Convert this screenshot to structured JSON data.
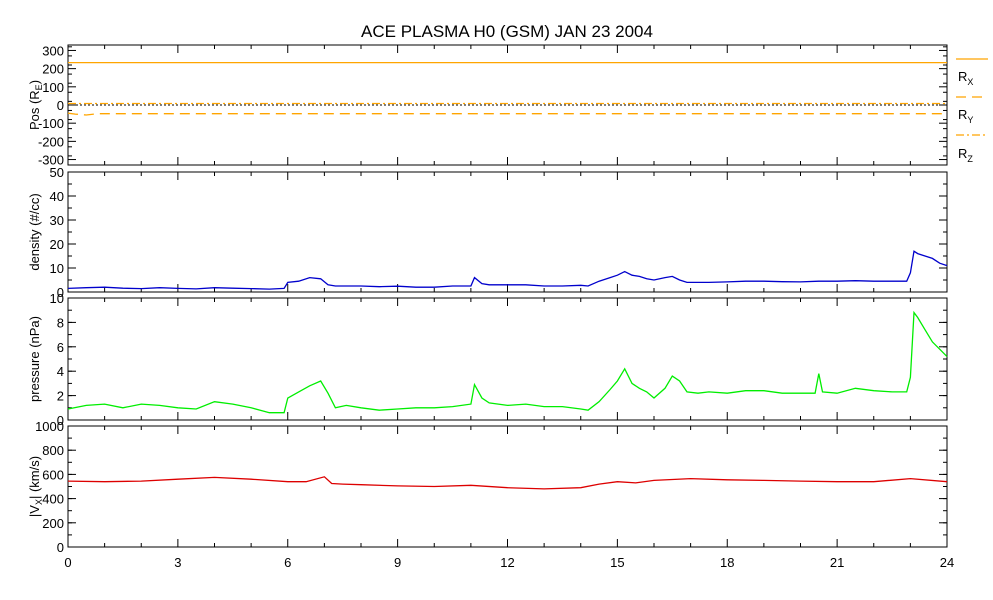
{
  "title": "ACE PLASMA H0 (GSM)   JAN 23 2004",
  "xaxis": {
    "ticks": [
      0,
      3,
      6,
      9,
      12,
      15,
      18,
      21,
      24
    ],
    "range": [
      0,
      24
    ]
  },
  "legend": {
    "rx": "R",
    "rx_sub": "X",
    "ry": "R",
    "ry_sub": "Y",
    "rz": "R",
    "rz_sub": "Z"
  },
  "colors": {
    "pos": "#ffa500",
    "density": "#0000cc",
    "pressure": "#00ee00",
    "vx": "#dd0000",
    "axis": "#000000"
  },
  "chart_data": [
    {
      "type": "line",
      "ylabel": "Pos (R",
      "ylabel_sub": "E",
      "ylabel_end": ")",
      "ylim": [
        -330,
        330
      ],
      "yticks": [
        300,
        200,
        100,
        0,
        -100,
        -200,
        -300
      ],
      "grid": false,
      "zero_line": true,
      "series": [
        {
          "name": "RX",
          "style": "solid",
          "x": [
            0,
            24
          ],
          "y": [
            233,
            233
          ]
        },
        {
          "name": "RY",
          "style": "dashed",
          "x": [
            0,
            0.2,
            0.5,
            0.8,
            24
          ],
          "y": [
            -45,
            -50,
            -55,
            -48,
            -48
          ]
        },
        {
          "name": "RZ",
          "style": "dashdot",
          "x": [
            0,
            24
          ],
          "y": [
            8,
            8
          ]
        }
      ]
    },
    {
      "type": "line",
      "ylabel": "density (#/cc)",
      "ylim": [
        0,
        50
      ],
      "yticks": [
        50,
        40,
        30,
        20,
        10,
        0
      ],
      "grid": false,
      "series": [
        {
          "name": "density",
          "x": [
            0,
            0.5,
            1,
            1.5,
            2,
            2.5,
            3,
            3.5,
            4,
            4.5,
            5,
            5.5,
            5.9,
            6.0,
            6.3,
            6.6,
            6.9,
            7.1,
            7.3,
            7.6,
            8,
            8.5,
            9,
            9.5,
            10,
            10.5,
            11,
            11.1,
            11.3,
            11.5,
            12,
            12.5,
            13,
            13.5,
            14,
            14.2,
            14.5,
            14.8,
            15,
            15.2,
            15.4,
            15.6,
            15.8,
            16,
            16.3,
            16.5,
            16.7,
            16.9,
            17.2,
            17.5,
            18,
            18.5,
            19,
            19.5,
            20,
            20.5,
            21,
            21.5,
            22,
            22.5,
            22.9,
            23.0,
            23.1,
            23.2,
            23.4,
            23.6,
            23.8,
            24
          ],
          "y": [
            1.5,
            1.8,
            2,
            1.6,
            1.4,
            1.8,
            1.5,
            1.3,
            1.8,
            1.6,
            1.4,
            1.2,
            1.5,
            4,
            4.5,
            6,
            5.5,
            3,
            2.5,
            2.5,
            2.5,
            2.2,
            2.4,
            2,
            2,
            2.5,
            2.5,
            6,
            3.5,
            3,
            3,
            3,
            2.5,
            2.5,
            2.8,
            2.5,
            4.5,
            6,
            7,
            8.5,
            7,
            6.5,
            5.5,
            5,
            6,
            6.5,
            5,
            4,
            4,
            4,
            4.2,
            4.5,
            4.5,
            4.3,
            4.2,
            4.5,
            4.5,
            4.7,
            4.5,
            4.5,
            4.5,
            8,
            17,
            16,
            15,
            14,
            12,
            11
          ]
        }
      ]
    },
    {
      "type": "line",
      "ylabel": "pressure (nPa)",
      "ylim": [
        0,
        10
      ],
      "yticks": [
        10,
        8,
        6,
        4,
        2,
        0
      ],
      "grid": false,
      "series": [
        {
          "name": "pressure",
          "x": [
            0,
            0.5,
            1,
            1.5,
            2,
            2.5,
            3,
            3.5,
            4,
            4.5,
            5,
            5.5,
            5.9,
            6.0,
            6.3,
            6.6,
            6.9,
            7.1,
            7.3,
            7.6,
            8,
            8.5,
            9,
            9.5,
            10,
            10.5,
            11,
            11.1,
            11.3,
            11.5,
            12,
            12.5,
            13,
            13.5,
            14,
            14.2,
            14.5,
            14.8,
            15,
            15.2,
            15.4,
            15.6,
            15.8,
            16,
            16.3,
            16.5,
            16.7,
            16.9,
            17.2,
            17.5,
            18,
            18.5,
            19,
            19.5,
            20,
            20.4,
            20.5,
            20.6,
            21,
            21.5,
            22,
            22.5,
            22.9,
            23.0,
            23.1,
            23.2,
            23.4,
            23.6,
            23.8,
            24
          ],
          "y": [
            0.9,
            1.2,
            1.3,
            1.0,
            1.3,
            1.2,
            1.0,
            0.9,
            1.5,
            1.3,
            1.0,
            0.6,
            0.6,
            1.8,
            2.3,
            2.8,
            3.2,
            2.2,
            1.0,
            1.2,
            1.0,
            0.8,
            0.9,
            1.0,
            1.0,
            1.1,
            1.3,
            2.9,
            1.8,
            1.4,
            1.2,
            1.3,
            1.1,
            1.1,
            0.9,
            0.8,
            1.5,
            2.5,
            3.2,
            4.2,
            3.0,
            2.6,
            2.3,
            1.8,
            2.6,
            3.6,
            3.2,
            2.3,
            2.2,
            2.3,
            2.2,
            2.4,
            2.4,
            2.2,
            2.2,
            2.2,
            3.8,
            2.3,
            2.2,
            2.6,
            2.4,
            2.3,
            2.3,
            3.5,
            8.8,
            8.4,
            7.4,
            6.4,
            5.8,
            5.2
          ]
        }
      ]
    },
    {
      "type": "line",
      "ylabel": "|V",
      "ylabel_sub": "X",
      "ylabel_end": "| (km/s)",
      "ylim": [
        0,
        1000
      ],
      "yticks": [
        1000,
        800,
        600,
        400,
        200,
        0
      ],
      "grid": false,
      "series": [
        {
          "name": "|VX|",
          "x": [
            0,
            1,
            2,
            3,
            4,
            5,
            6,
            6.5,
            7,
            7.2,
            7.5,
            8,
            9,
            10,
            11,
            12,
            13,
            14,
            14.5,
            15,
            15.5,
            16,
            17,
            18,
            19,
            20,
            21,
            22,
            23,
            24
          ],
          "y": [
            545,
            540,
            545,
            560,
            575,
            560,
            540,
            540,
            580,
            525,
            520,
            515,
            505,
            500,
            510,
            490,
            480,
            490,
            520,
            540,
            530,
            550,
            565,
            555,
            550,
            545,
            540,
            540,
            565,
            540
          ]
        }
      ]
    }
  ]
}
